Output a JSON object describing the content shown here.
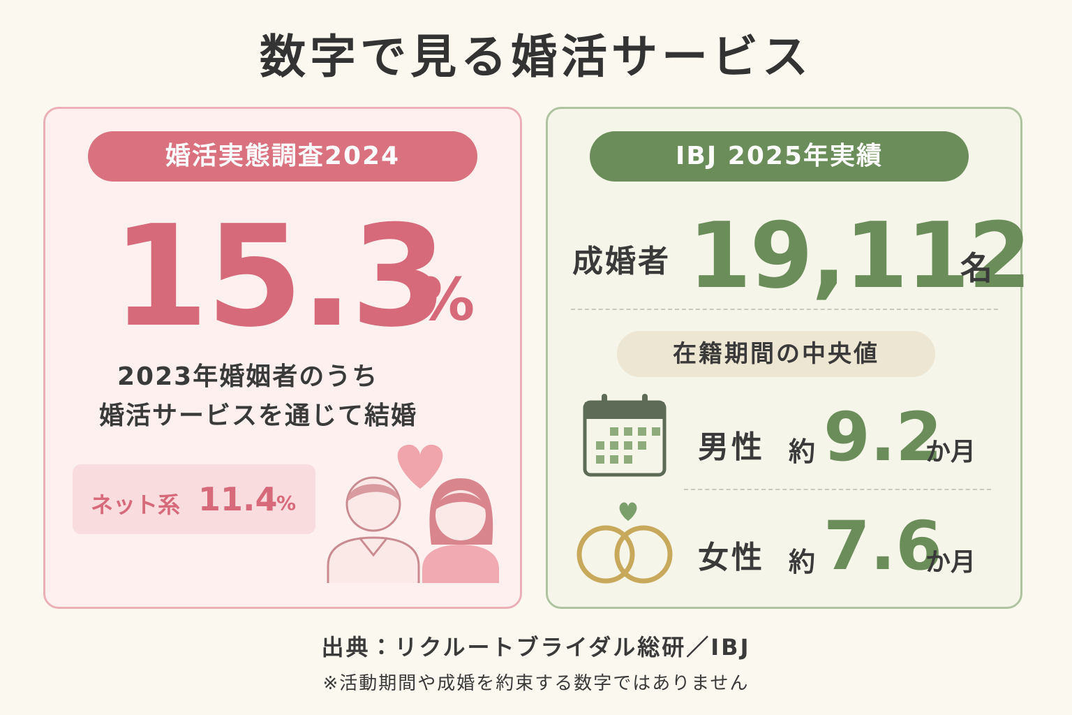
{
  "title": "数字で見る婚活サービス",
  "left": {
    "badge": "婚活実態調査2024",
    "value": "15.3",
    "unit": "%",
    "description": [
      "2023年婚姻者のうち",
      "婚活サービスを通じて結婚"
    ],
    "sub": {
      "label": "ネット系",
      "value": "11.4",
      "unit": "%"
    }
  },
  "right": {
    "badge": "IBJ 2025年実績",
    "label": "成婚者",
    "value": "19,112",
    "unit": "名",
    "median_badge": "在籍期間の中央値",
    "rows": [
      {
        "label": "男性",
        "prefix": "約",
        "value": "9.2",
        "unit": "か月"
      },
      {
        "label": "女性",
        "prefix": "約",
        "value": "7.6",
        "unit": "か月"
      }
    ]
  },
  "footer": {
    "source": "出典：リクルートブライダル総研／IBJ",
    "note": "※活動期間や成婚を約束する数字ではありません"
  }
}
